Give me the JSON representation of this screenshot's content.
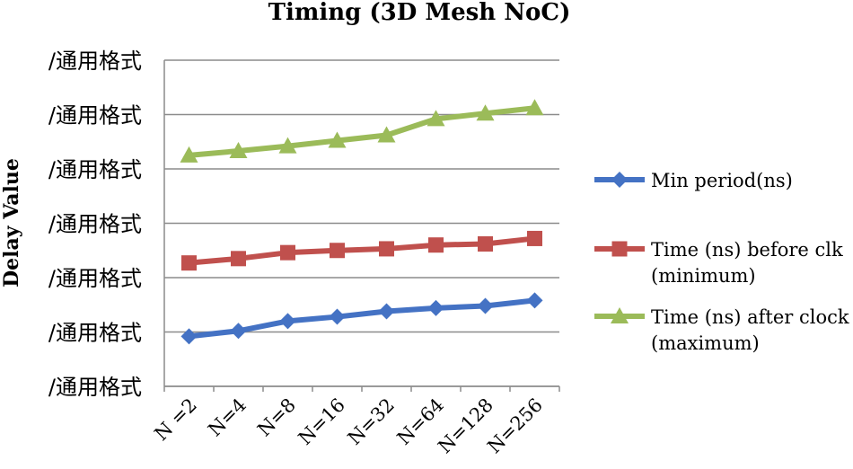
{
  "chart_data": {
    "type": "line",
    "title": "Timing (3D Mesh NoC)",
    "xlabel": "",
    "ylabel": "Delay Value",
    "categories": [
      "N =2",
      "N=4",
      "N=8",
      "N=16",
      "N=32",
      "N=64",
      "N=128",
      "N=256"
    ],
    "y_tick_labels": [
      "/通用格式",
      "/通用格式",
      "/通用格式",
      "/通用格式",
      "/通用格式",
      "/通用格式",
      "/通用格式"
    ],
    "ylim": [
      0,
      6
    ],
    "grid": true,
    "legend_position": "right",
    "series": [
      {
        "name": "Min period(ns)",
        "legend_lines": [
          "Min period(ns)"
        ],
        "color": "#4472C4",
        "marker": "diamond",
        "values": [
          0.92,
          1.02,
          1.2,
          1.28,
          1.38,
          1.44,
          1.48,
          1.58
        ]
      },
      {
        "name": "Time (ns) before clk (minimum)",
        "legend_lines": [
          "Time (ns) before clk",
          "(minimum)"
        ],
        "color": "#C0504D",
        "marker": "square",
        "values": [
          2.27,
          2.35,
          2.46,
          2.5,
          2.53,
          2.6,
          2.62,
          2.72
        ]
      },
      {
        "name": "Time (ns) after clock (maximum)",
        "legend_lines": [
          "Time (ns) after clock",
          "(maximum)"
        ],
        "color": "#9BBB59",
        "marker": "triangle",
        "values": [
          4.25,
          4.33,
          4.42,
          4.52,
          4.62,
          4.92,
          5.02,
          5.12
        ]
      }
    ]
  }
}
